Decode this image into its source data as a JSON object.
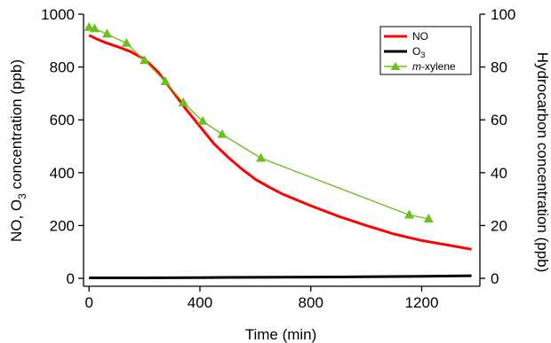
{
  "chart_data": {
    "type": "line",
    "xlabel": "Time (min)",
    "ylabel_left": [
      "NO, O",
      "3",
      " concentration  (ppb)"
    ],
    "ylabel_right": "Hydrocarbon  concentration (ppb)",
    "xlim": [
      -20,
      1410
    ],
    "ylim_left": [
      -30,
      1000
    ],
    "ylim_right": [
      -3,
      100
    ],
    "x_ticks": [
      0,
      400,
      800,
      1200
    ],
    "x_tick_labels": [
      "0",
      "400",
      "800",
      "1200"
    ],
    "y_left_ticks": [
      0,
      200,
      400,
      600,
      800,
      1000
    ],
    "y_left_tick_labels": [
      "0",
      "200",
      "400",
      "600",
      "800",
      "1000"
    ],
    "y_right_ticks": [
      0,
      20,
      40,
      60,
      80,
      100
    ],
    "y_right_tick_labels": [
      "0",
      "20",
      "40",
      "60",
      "80",
      "100"
    ],
    "grid": false,
    "legend_position": "top-right",
    "series": [
      {
        "name": "NO",
        "axis": "left",
        "color": "#ff0000",
        "style": "line",
        "x": [
          0,
          30,
          60,
          100,
          150,
          200,
          250,
          300,
          350,
          400,
          450,
          500,
          550,
          600,
          650,
          700,
          800,
          900,
          1000,
          1100,
          1200,
          1300,
          1380
        ],
        "y": [
          920,
          905,
          892,
          878,
          858,
          830,
          780,
          710,
          640,
          575,
          510,
          460,
          415,
          375,
          345,
          318,
          275,
          235,
          200,
          168,
          143,
          125,
          110
        ]
      },
      {
        "name_parts": [
          "O",
          "3"
        ],
        "axis": "left",
        "color": "#000000",
        "style": "line",
        "x": [
          0,
          200,
          400,
          600,
          800,
          1000,
          1200,
          1380
        ],
        "y": [
          2,
          2,
          3,
          4,
          5,
          6,
          8,
          10
        ]
      },
      {
        "name_parts": [
          "m",
          "-xylene"
        ],
        "axis": "right",
        "color": "#6cbf1c",
        "style": "line+triangle",
        "x": [
          0,
          20,
          65,
          135,
          200,
          275,
          340,
          410,
          480,
          620,
          1155,
          1225
        ],
        "y": [
          95,
          94.5,
          92.5,
          89,
          82.5,
          74.5,
          66.5,
          59.5,
          54.5,
          45.5,
          24,
          22.5
        ]
      }
    ]
  }
}
